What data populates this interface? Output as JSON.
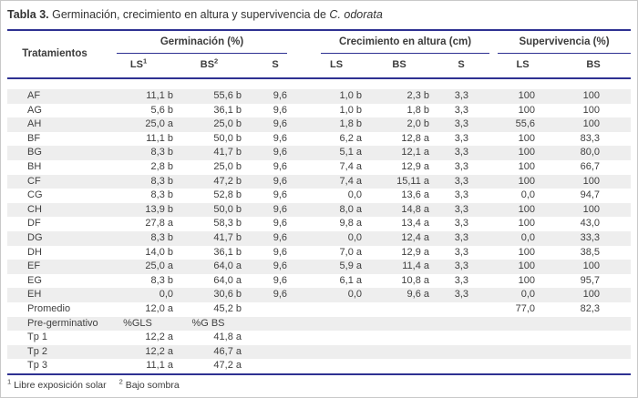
{
  "title": {
    "label": "Tabla 3.",
    "caption": " Germinación, crecimiento en altura y supervivencia de ",
    "species": "C. odorata"
  },
  "table": {
    "treatments_header": "Tratamientos",
    "groups": [
      {
        "label": "Germinación (%)",
        "subcols": [
          {
            "label": "LS",
            "sup": "1"
          },
          {
            "label": "BS",
            "sup": "2"
          },
          {
            "label": "S",
            "sup": ""
          }
        ]
      },
      {
        "label": "Crecimiento en altura (cm)",
        "subcols": [
          {
            "label": "LS",
            "sup": ""
          },
          {
            "label": "BS",
            "sup": ""
          },
          {
            "label": "S",
            "sup": ""
          }
        ]
      },
      {
        "label": "Supervivencia (%)",
        "subcols": [
          {
            "label": "LS",
            "sup": ""
          },
          {
            "label": "BS",
            "sup": ""
          }
        ]
      }
    ],
    "rows": [
      {
        "treatment": "AF",
        "values": [
          "11,1 b",
          "55,6 b",
          "9,6",
          "1,0 b",
          "2,3 b",
          "3,3",
          "100",
          "100"
        ]
      },
      {
        "treatment": "AG",
        "values": [
          "5,6 b",
          "36,1 b",
          "9,6",
          "1,0 b",
          "1,8 b",
          "3,3",
          "100",
          "100"
        ]
      },
      {
        "treatment": "AH",
        "values": [
          "25,0 a",
          "25,0 b",
          "9,6",
          "1,8 b",
          "2,0 b",
          "3,3",
          "55,6",
          "100"
        ]
      },
      {
        "treatment": "BF",
        "values": [
          "11,1 b",
          "50,0 b",
          "9,6",
          "6,2 a",
          "12,8 a",
          "3,3",
          "100",
          "83,3"
        ]
      },
      {
        "treatment": "BG",
        "values": [
          "8,3 b",
          "41,7 b",
          "9,6",
          "5,1 a",
          "12,1 a",
          "3,3",
          "100",
          "80,0"
        ]
      },
      {
        "treatment": "BH",
        "values": [
          "2,8 b",
          "25,0 b",
          "9,6",
          "7,4 a",
          "12,9 a",
          "3,3",
          "100",
          "66,7"
        ]
      },
      {
        "treatment": "CF",
        "values": [
          "8,3 b",
          "47,2 b",
          "9,6",
          "7,4 a",
          "15,11 a",
          "3,3",
          "100",
          "100"
        ]
      },
      {
        "treatment": "CG",
        "values": [
          "8,3 b",
          "52,8 b",
          "9,6",
          "0,0",
          "13,6 a",
          "3,3",
          "0,0",
          "94,7"
        ]
      },
      {
        "treatment": "CH",
        "values": [
          "13,9 b",
          "50,0 b",
          "9,6",
          "8,0 a",
          "14,8 a",
          "3,3",
          "100",
          "100"
        ]
      },
      {
        "treatment": "DF",
        "values": [
          "27,8 a",
          "58,3 b",
          "9,6",
          "9,8 a",
          "13,4 a",
          "3,3",
          "100",
          "43,0"
        ]
      },
      {
        "treatment": "DG",
        "values": [
          "8,3 b",
          "41,7 b",
          "9,6",
          "0,0",
          "12,4 a",
          "3,3",
          "0,0",
          "33,3"
        ]
      },
      {
        "treatment": "DH",
        "values": [
          "14,0 b",
          "36,1 b",
          "9,6",
          "7,0 a",
          "12,9 a",
          "3,3",
          "100",
          "38,5"
        ]
      },
      {
        "treatment": "EF",
        "values": [
          "25,0 a",
          "64,0 a",
          "9,6",
          "5,9 a",
          "11,4 a",
          "3,3",
          "100",
          "100"
        ]
      },
      {
        "treatment": "EG",
        "values": [
          "8,3 b",
          "64,0 a",
          "9,6",
          "6,1 a",
          "10,8 a",
          "3,3",
          "100",
          "95,7"
        ]
      },
      {
        "treatment": "EH",
        "values": [
          "0,0",
          "30,6 b",
          "9,6",
          "0,0",
          "9,6 a",
          "3,3",
          "0,0",
          "100"
        ]
      },
      {
        "treatment": "Promedio",
        "values": [
          "12,0 a",
          "45,2 b",
          "",
          "",
          "",
          "",
          "77,0",
          "82,3"
        ]
      },
      {
        "treatment": "Pre-germinativo",
        "values": [
          "%GLS",
          "%G BS",
          "",
          "",
          "",
          "",
          "",
          ""
        ]
      },
      {
        "treatment": "Tp 1",
        "values": [
          "12,2 a",
          "41,8 a",
          "",
          "",
          "",
          "",
          "",
          ""
        ]
      },
      {
        "treatment": "Tp 2",
        "values": [
          "12,2 a",
          "46,7 a",
          "",
          "",
          "",
          "",
          "",
          ""
        ]
      },
      {
        "treatment": "Tp 3",
        "values": [
          "11,1 a",
          "47,2 a",
          "",
          "",
          "",
          "",
          "",
          ""
        ]
      }
    ]
  },
  "footnotes": [
    {
      "sup": "1",
      "text": "Libre exposición solar"
    },
    {
      "sup": "2",
      "text": "Bajo sombra"
    }
  ],
  "colors": {
    "rule": "#2e3192",
    "stripe": "#eeeeee",
    "text": "#404040"
  }
}
